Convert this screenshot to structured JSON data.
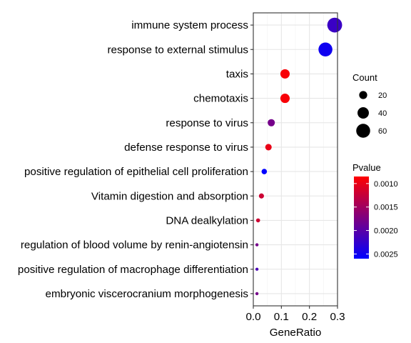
{
  "chart_data": {
    "type": "scatter",
    "xlabel": "GeneRatio",
    "ylabel": "",
    "xlim": [
      0,
      0.3
    ],
    "x_ticks": [
      "0.0",
      "0.1",
      "0.2",
      "0.3"
    ],
    "grid": true,
    "categories": [
      "immune system process",
      "response to external stimulus",
      "taxis",
      "chemotaxis",
      "response to virus",
      "defense response to virus",
      "positive regulation of epithelial cell proliferation",
      "Vitamin digestion and absorption",
      "DNA dealkylation",
      "regulation of blood volume by renin-angiotensin",
      "positive regulation of macrophage differentiation",
      "embryonic viscerocranium morphogenesis"
    ],
    "points": [
      {
        "term": "immune system process",
        "gene_ratio": 0.29,
        "count": 68,
        "pvalue": 0.0022
      },
      {
        "term": "response to external stimulus",
        "gene_ratio": 0.257,
        "count": 60,
        "pvalue": 0.0025
      },
      {
        "term": "taxis",
        "gene_ratio": 0.113,
        "count": 27,
        "pvalue": 0.0009
      },
      {
        "term": "chemotaxis",
        "gene_ratio": 0.113,
        "count": 27,
        "pvalue": 0.0009
      },
      {
        "term": "response to virus",
        "gene_ratio": 0.064,
        "count": 16,
        "pvalue": 0.0018
      },
      {
        "term": "defense response to virus",
        "gene_ratio": 0.054,
        "count": 13,
        "pvalue": 0.001
      },
      {
        "term": "positive regulation of epithelial cell proliferation",
        "gene_ratio": 0.039,
        "count": 9,
        "pvalue": 0.0026
      },
      {
        "term": "Vitamin digestion and absorption",
        "gene_ratio": 0.029,
        "count": 8,
        "pvalue": 0.0012
      },
      {
        "term": "DNA dealkylation",
        "gene_ratio": 0.017,
        "count": 5,
        "pvalue": 0.0012
      },
      {
        "term": "regulation of blood volume by renin-angiotensin",
        "gene_ratio": 0.013,
        "count": 3,
        "pvalue": 0.0018
      },
      {
        "term": "positive regulation of macrophage differentiation",
        "gene_ratio": 0.013,
        "count": 3,
        "pvalue": 0.0021
      },
      {
        "term": "embryonic viscerocranium morphogenesis",
        "gene_ratio": 0.013,
        "count": 3,
        "pvalue": 0.0018
      }
    ],
    "legend_size": {
      "title": "Count",
      "entries": [
        {
          "label": "20",
          "value": 20
        },
        {
          "label": "40",
          "value": 40
        },
        {
          "label": "60",
          "value": 60
        }
      ]
    },
    "legend_color": {
      "title": "Pvalue",
      "range": [
        0.00085,
        0.0026
      ],
      "ticks": [
        {
          "label": "0.0010",
          "value": 0.001
        },
        {
          "label": "0.0015",
          "value": 0.0015
        },
        {
          "label": "0.0020",
          "value": 0.002
        },
        {
          "label": "0.0025",
          "value": 0.0025
        }
      ],
      "low_color": "#ff0000",
      "high_color": "#0000ff"
    },
    "legend_position": "right"
  }
}
